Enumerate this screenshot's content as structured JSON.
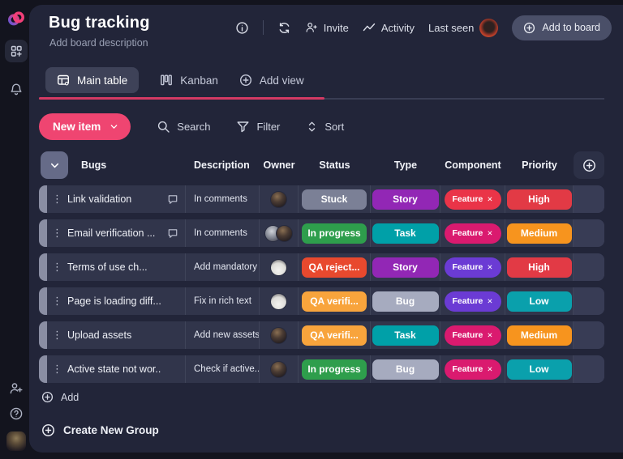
{
  "header": {
    "title": "Bug tracking",
    "description": "Add board description",
    "invite": "Invite",
    "activity": "Activity",
    "last_seen": "Last seen",
    "add_to_board": "Add to board"
  },
  "tabs": {
    "main_table": "Main table",
    "kanban": "Kanban",
    "add_view": "Add view"
  },
  "toolbar": {
    "new_item": "New item",
    "search": "Search",
    "filter": "Filter",
    "sort": "Sort"
  },
  "table": {
    "columns": [
      "Bugs",
      "Description",
      "Owner",
      "Status",
      "Type",
      "Component",
      "Priority"
    ],
    "rows": [
      {
        "name": "Link validation",
        "has_comment": true,
        "description": "In comments",
        "owners": [
          "dark"
        ],
        "status": {
          "label": "Stuck",
          "color": "#7B8096"
        },
        "type": {
          "label": "Story",
          "color": "#9227B5"
        },
        "component": {
          "label": "Feature",
          "color": "#EA3448"
        },
        "priority": {
          "label": "High",
          "color": "#E23A45"
        }
      },
      {
        "name": "Email verification ...",
        "has_comment": true,
        "description": "In comments",
        "owners": [
          "gray",
          "dark"
        ],
        "status": {
          "label": "In progress",
          "color": "#2E9E4C"
        },
        "type": {
          "label": "Task",
          "color": "#00A0A8"
        },
        "component": {
          "label": "Feature",
          "color": "#DA1A6F"
        },
        "priority": {
          "label": "Medium",
          "color": "#F7941E"
        }
      },
      {
        "name": "Terms of use ch...",
        "has_comment": false,
        "description": "Add mandatory",
        "owners": [
          "light"
        ],
        "status": {
          "label": "QA reject...",
          "color": "#E8492E"
        },
        "type": {
          "label": "Story",
          "color": "#9227B5"
        },
        "component": {
          "label": "Feature",
          "color": "#6B3BD4"
        },
        "priority": {
          "label": "High",
          "color": "#E23A45"
        }
      },
      {
        "name": "Page is loading diff...",
        "has_comment": false,
        "description": "Fix in rich text",
        "owners": [
          "light"
        ],
        "status": {
          "label": "QA verifi...",
          "color": "#F8A43C"
        },
        "type": {
          "label": "Bug",
          "color": "#A6ABBF"
        },
        "component": {
          "label": "Feature",
          "color": "#6B3BD4"
        },
        "priority": {
          "label": "Low",
          "color": "#0AA0AC"
        }
      },
      {
        "name": "Upload assets",
        "has_comment": false,
        "description": "Add new assets",
        "owners": [
          "dark"
        ],
        "status": {
          "label": "QA verifi...",
          "color": "#F8A43C"
        },
        "type": {
          "label": "Task",
          "color": "#00A0A8"
        },
        "component": {
          "label": "Feature",
          "color": "#DA1A6F"
        },
        "priority": {
          "label": "Medium",
          "color": "#F7941E"
        }
      },
      {
        "name": "Active state not wor..",
        "has_comment": false,
        "description": "Check if active...",
        "owners": [
          "dark"
        ],
        "status": {
          "label": "In progress",
          "color": "#2E9E4C"
        },
        "type": {
          "label": "Bug",
          "color": "#A6ABBF"
        },
        "component": {
          "label": "Feature",
          "color": "#DA1A6F"
        },
        "priority": {
          "label": "Low",
          "color": "#0AA0AC"
        }
      }
    ]
  },
  "footer": {
    "add": "Add",
    "create_new_group": "Create New Group"
  },
  "icons": {
    "kebab_glyph": "⋮",
    "close_glyph": "✕"
  },
  "colors": {
    "accent_pink": "#EF4571",
    "tab_underline": "#D43A63",
    "panel_bg": "#222539",
    "row_bg": "#31354B"
  }
}
